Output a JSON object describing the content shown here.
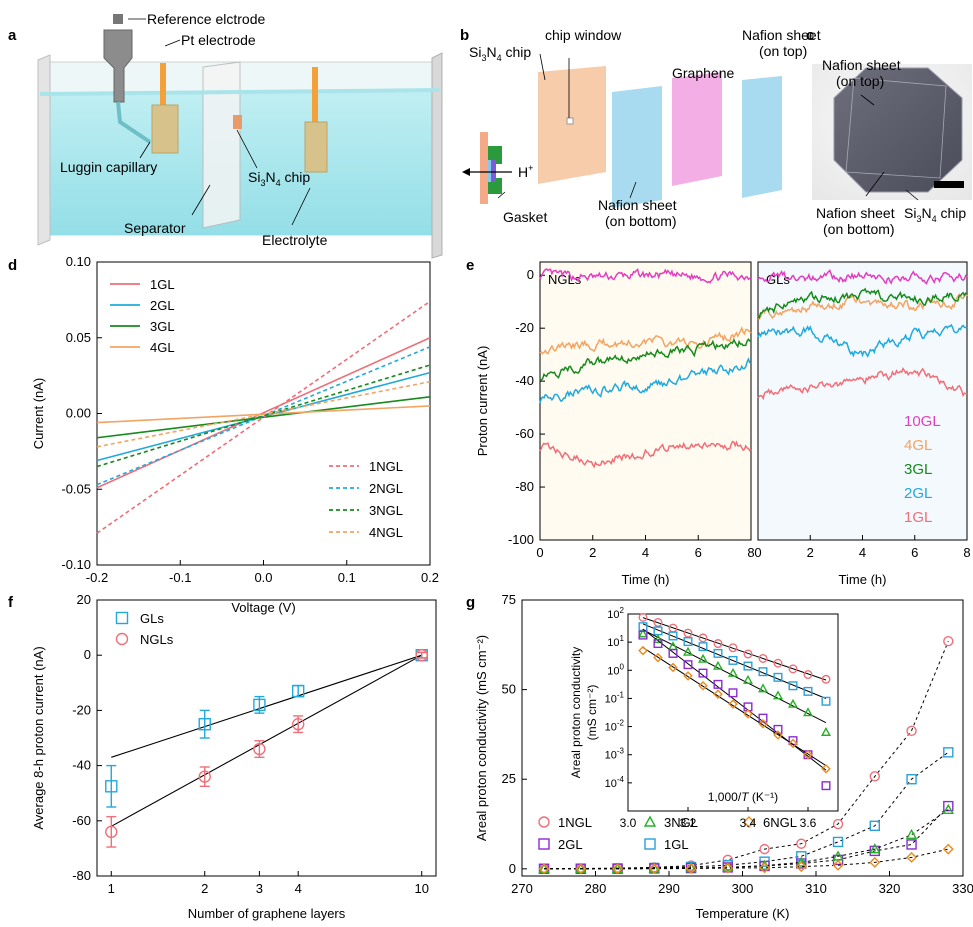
{
  "panel_labels": {
    "a": "a",
    "b": "b",
    "c": "c",
    "d": "d",
    "e": "e",
    "f": "f",
    "g": "g"
  },
  "schematic_a": {
    "reference": "Reference elctrode",
    "pt": "Pt electrode",
    "luggin": "Luggin capillary",
    "chip_main": "Si",
    "chip_sub3": "3",
    "chip_n": "N",
    "chip_sub4": "4",
    "chip_rest": " chip",
    "separator": "Separator",
    "electrolyte": "Electrolyte"
  },
  "schematic_b": {
    "sin_main": "Si",
    "sin_sub3": "3",
    "sin_n": "N",
    "sin_sub4": "4",
    "sin_rest": " chip",
    "chip_window": "chip window",
    "graphene": "Graphene",
    "nafion_top_1": "Nafion sheet",
    "nafion_top_2": "(on top)",
    "proton": "H",
    "proton_sup": "+",
    "gasket": "Gasket",
    "nafion_bottom_1": "Nafion sheet",
    "nafion_bottom_2": "(on bottom)"
  },
  "photo_c": {
    "nafion_top_1": "Nafion sheet",
    "nafion_top_2": "(on top)",
    "nafion_bottom_1": "Nafion sheet",
    "nafion_bottom_2": "(on bottom)",
    "sin_main": "Si",
    "sin_sub3": "3",
    "sin_n": "N",
    "sin_sub4": "4",
    "sin_rest": " chip"
  },
  "colors": {
    "1": "#ef6f78",
    "2": "#21a9dc",
    "3": "#168a1d",
    "4": "#f2a463",
    "10": "#e13ec0",
    "6": "#ec8a1a",
    "purple": "#8b2bd0",
    "cyan": "#2aa0d8",
    "green_g": "#25b025"
  },
  "chart_data": [
    {
      "panel": "d",
      "type": "line",
      "xlabel": "Voltage (V)",
      "ylabel": "Current (nA)",
      "xlim": [
        -0.2,
        0.2
      ],
      "ylim": [
        -0.1,
        0.1
      ],
      "xticks": [
        "-0.2",
        "-0.1",
        "0.0",
        "0.1",
        "0.2"
      ],
      "yticks": [
        "-0.10",
        "-0.05",
        "0.00",
        "0.05",
        "0.10"
      ],
      "series": [
        {
          "name": "1GL",
          "style": "solid",
          "color": "#ef6f78",
          "x": [
            -0.2,
            0.2
          ],
          "y": [
            -0.049,
            0.05
          ]
        },
        {
          "name": "2GL",
          "style": "solid",
          "color": "#21a9dc",
          "x": [
            -0.2,
            0.2
          ],
          "y": [
            -0.031,
            0.027
          ]
        },
        {
          "name": "3GL",
          "style": "solid",
          "color": "#168a1d",
          "x": [
            -0.2,
            0.2
          ],
          "y": [
            -0.016,
            0.011
          ]
        },
        {
          "name": "4GL",
          "style": "solid",
          "color": "#f2a463",
          "x": [
            -0.2,
            0.2
          ],
          "y": [
            -0.006,
            0.005
          ]
        },
        {
          "name": "1NGL",
          "style": "dashed",
          "color": "#ef6f78",
          "x": [
            -0.2,
            0.2
          ],
          "y": [
            -0.079,
            0.074
          ]
        },
        {
          "name": "2NGL",
          "style": "dashed",
          "color": "#21a9dc",
          "x": [
            -0.2,
            0.2
          ],
          "y": [
            -0.047,
            0.044
          ]
        },
        {
          "name": "3NGL",
          "style": "dashed",
          "color": "#168a1d",
          "x": [
            -0.2,
            0.2
          ],
          "y": [
            -0.035,
            0.032
          ]
        },
        {
          "name": "4NGL",
          "style": "dashed",
          "color": "#f2a463",
          "x": [
            -0.2,
            0.2
          ],
          "y": [
            -0.022,
            0.021
          ]
        }
      ]
    },
    {
      "panel": "e",
      "type": "line",
      "xlabel": "Time (h)",
      "ylabel": "Proton current (nA)",
      "subpanels": [
        "NGLs",
        "GLs"
      ],
      "xlim": [
        0,
        8
      ],
      "ylim": [
        -100,
        5
      ],
      "xticks": [
        "0",
        "2",
        "4",
        "6",
        "8"
      ],
      "yticks": [
        "0",
        "-20",
        "-40",
        "-60",
        "-80",
        "-100"
      ],
      "legend": [
        "10GL",
        "4GL",
        "3GL",
        "2GL",
        "1GL"
      ],
      "series": [
        {
          "name": "10GL",
          "group": "NGLs",
          "color": "#e13ec0",
          "mean": [
            0,
            -1,
            0,
            -0.5,
            0
          ]
        },
        {
          "name": "4GL",
          "group": "NGLs",
          "color": "#f2a463",
          "mean": [
            -28,
            -26,
            -25,
            -26,
            -21
          ]
        },
        {
          "name": "3GL",
          "group": "NGLs",
          "color": "#168a1d",
          "mean": [
            -38,
            -33,
            -30,
            -28,
            -24
          ]
        },
        {
          "name": "2GL",
          "group": "NGLs",
          "color": "#21a9dc",
          "mean": [
            -47,
            -43,
            -42,
            -38,
            -33
          ]
        },
        {
          "name": "1GL",
          "group": "NGLs",
          "color": "#ef6f78",
          "mean": [
            -65,
            -70,
            -67,
            -63,
            -64
          ]
        },
        {
          "name": "10GL",
          "group": "GLs",
          "color": "#e13ec0",
          "mean": [
            0,
            -1,
            -0.5,
            -1,
            -1
          ]
        },
        {
          "name": "4GL",
          "group": "GLs",
          "color": "#f2a463",
          "mean": [
            -15,
            -12,
            -10,
            -12,
            -9
          ]
        },
        {
          "name": "3GL",
          "group": "GLs",
          "color": "#168a1d",
          "mean": [
            -14,
            -9,
            -8,
            -9,
            -7
          ]
        },
        {
          "name": "2GL",
          "group": "GLs",
          "color": "#21a9dc",
          "mean": [
            -22,
            -21,
            -30,
            -22,
            -21
          ]
        },
        {
          "name": "1GL",
          "group": "GLs",
          "color": "#ef6f78",
          "mean": [
            -45,
            -42,
            -39,
            -36,
            -45
          ]
        }
      ]
    },
    {
      "panel": "f",
      "type": "scatter",
      "xlabel": "Number of graphene layers",
      "ylabel": "Average 8-h proton current (nA)",
      "xticks": [
        "1",
        "2",
        "3",
        "4",
        "10"
      ],
      "xscale": "log",
      "ylim": [
        -80,
        20
      ],
      "yticks": [
        "20",
        "0",
        "-20",
        "-40",
        "-60",
        "-80"
      ],
      "series": [
        {
          "name": "GLs",
          "marker": "square",
          "color": "#21a9dc",
          "x": [
            1,
            2,
            3,
            4,
            10
          ],
          "y": [
            -47.5,
            -25,
            -18,
            -13,
            0
          ],
          "err": [
            7.5,
            5,
            3,
            2,
            1
          ]
        },
        {
          "name": "NGLs",
          "marker": "circle",
          "color": "#ef6f78",
          "x": [
            1,
            2,
            3,
            4,
            10
          ],
          "y": [
            -64,
            -44,
            -34,
            -25,
            0
          ],
          "err": [
            5.5,
            3.5,
            3,
            3,
            1
          ]
        }
      ],
      "fits": [
        {
          "x": [
            1,
            10
          ],
          "y": [
            -37,
            0
          ]
        },
        {
          "x": [
            1,
            10
          ],
          "y": [
            -62,
            0
          ]
        }
      ]
    },
    {
      "panel": "g",
      "type": "scatter",
      "xlabel": "Temperature (K)",
      "ylabel": "Areal proton conductivity (mS cm⁻²)",
      "xlim": [
        270,
        330
      ],
      "ylim": [
        -2,
        75
      ],
      "xticks": [
        "270",
        "280",
        "290",
        "300",
        "310",
        "320",
        "330"
      ],
      "yticks": [
        "0",
        "25",
        "50",
        "75"
      ],
      "x": [
        273,
        278,
        283,
        288,
        293,
        298,
        303,
        308,
        313,
        318,
        323,
        328
      ],
      "series": [
        {
          "name": "1NGL",
          "marker": "circle",
          "color": "#ef6f78",
          "y": [
            0.05,
            0.1,
            0.2,
            0.4,
            0.9,
            2.5,
            5.5,
            7.0,
            12.5,
            25.8,
            38.5,
            63.5
          ]
        },
        {
          "name": "1GL",
          "marker": "square",
          "color": "#2aa0d8",
          "y": [
            0.03,
            0.05,
            0.1,
            0.25,
            0.5,
            1.0,
            2.0,
            3.5,
            7.5,
            12.0,
            25.0,
            32.5
          ]
        },
        {
          "name": "2GL",
          "marker": "square",
          "color": "#8b2bd0",
          "y": [
            0.01,
            0.02,
            0.05,
            0.1,
            0.2,
            0.4,
            0.8,
            1.5,
            2.5,
            5.0,
            6.8,
            17.5
          ]
        },
        {
          "name": "3NGL",
          "marker": "triangle",
          "color": "#25b025",
          "y": [
            0.01,
            0.02,
            0.05,
            0.1,
            0.2,
            0.4,
            0.9,
            1.8,
            3.5,
            5.5,
            9.5,
            16.5
          ]
        },
        {
          "name": "6NGL",
          "marker": "diamond",
          "color": "#ec8a1a",
          "y": [
            0.005,
            0.01,
            0.02,
            0.05,
            0.1,
            0.2,
            0.3,
            0.6,
            1.0,
            1.8,
            3.2,
            5.5
          ]
        }
      ],
      "inset": {
        "xlabel_pre": "1,000/",
        "xlabel_var": "T",
        "xlabel_post": " (K⁻¹)",
        "ylabel_1": "Areal proton conductivity",
        "ylabel_2": "(mS cm⁻²)",
        "xlim": [
          3.0,
          3.7
        ],
        "ylim_log10": [
          -5,
          2
        ],
        "xticks": [
          "3.0",
          "3.2",
          "3.4",
          "3.6"
        ],
        "ytick_exp": [
          "2",
          "1",
          "0",
          "-1",
          "-2",
          "-3",
          "-4"
        ],
        "ytick_base": "10",
        "x": [
          3.05,
          3.1,
          3.15,
          3.2,
          3.25,
          3.3,
          3.35,
          3.4,
          3.45,
          3.5,
          3.55,
          3.6,
          3.66
        ],
        "series": [
          {
            "name": "1NGL",
            "color": "#ef6f78",
            "marker": "circle",
            "log10": [
              1.88,
              1.7,
              1.5,
              1.32,
              1.15,
              0.95,
              0.8,
              0.58,
              0.42,
              0.25,
              0.05,
              -0.15,
              -0.32
            ]
          },
          {
            "name": "1GL",
            "color": "#2aa0d8",
            "marker": "square",
            "log10": [
              1.55,
              1.4,
              1.22,
              1.02,
              0.84,
              0.6,
              0.35,
              0.15,
              -0.05,
              -0.25,
              -0.55,
              -0.75,
              -1.1
            ]
          },
          {
            "name": "3NGL",
            "color": "#25b025",
            "marker": "triangle",
            "log10": [
              1.3,
              1.1,
              0.85,
              0.65,
              0.4,
              0.15,
              -0.1,
              -0.35,
              -0.65,
              -0.9,
              -1.2,
              -1.5,
              -2.2
            ]
          },
          {
            "name": "2GL",
            "color": "#8b2bd0",
            "marker": "square",
            "log10": [
              1.25,
              0.95,
              0.6,
              0.2,
              -0.1,
              -0.5,
              -0.8,
              -1.3,
              -1.7,
              -2.1,
              -2.5,
              -3.0,
              -4.1
            ]
          },
          {
            "name": "6NGL",
            "color": "#ec8a1a",
            "marker": "diamond",
            "log10": [
              0.7,
              0.45,
              0.1,
              -0.2,
              -0.55,
              -0.85,
              -1.2,
              -1.55,
              -1.9,
              -2.3,
              -2.6,
              -3.0,
              -3.5
            ]
          }
        ]
      }
    }
  ]
}
